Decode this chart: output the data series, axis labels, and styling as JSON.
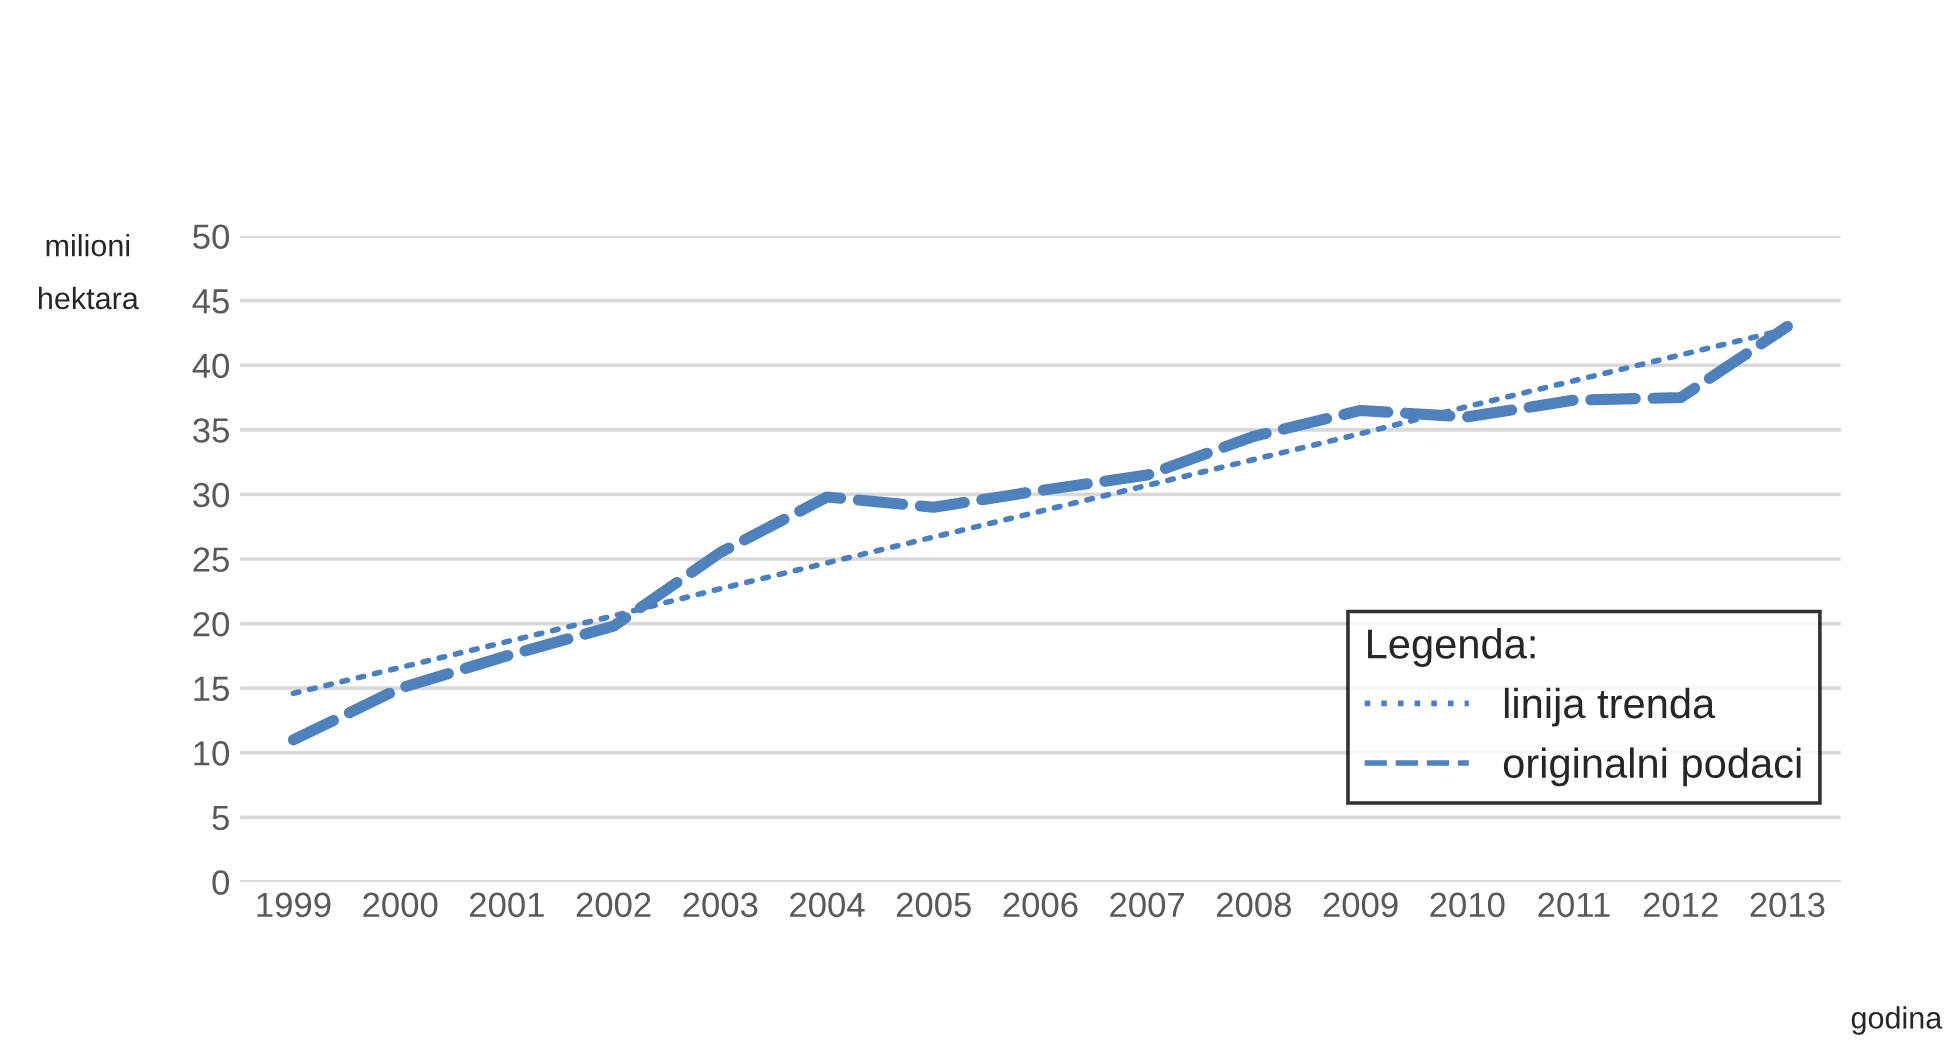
{
  "chart_data": {
    "type": "line",
    "categories": [
      "1999",
      "2000",
      "2001",
      "2002",
      "2003",
      "2004",
      "2005",
      "2006",
      "2007",
      "2008",
      "2009",
      "2010",
      "2011",
      "2012",
      "2013"
    ],
    "series": [
      {
        "name": "linija trenda",
        "color": "#4a7fc1",
        "line_style": "dotted",
        "values": [
          14.6,
          16.6,
          18.6,
          20.6,
          22.7,
          24.7,
          26.7,
          28.7,
          30.7,
          32.7,
          34.7,
          36.8,
          38.8,
          40.8,
          42.8
        ]
      },
      {
        "name": "originalni podaci",
        "color": "#4f81bd",
        "line_style": "dashed",
        "values": [
          11,
          15,
          17.5,
          19.8,
          25.5,
          29.8,
          29,
          30.3,
          31.5,
          34.5,
          36.5,
          36,
          37.3,
          37.5,
          43
        ]
      }
    ],
    "ylabel": "milioni\nhektara",
    "xlabel": "godina",
    "legend_title": "Legenda:",
    "ylim": [
      0,
      50
    ],
    "yticks": [
      0,
      5,
      10,
      15,
      20,
      25,
      30,
      35,
      40,
      45,
      50
    ],
    "grid": "y",
    "legend": "bottom right",
    "marker": "none"
  }
}
